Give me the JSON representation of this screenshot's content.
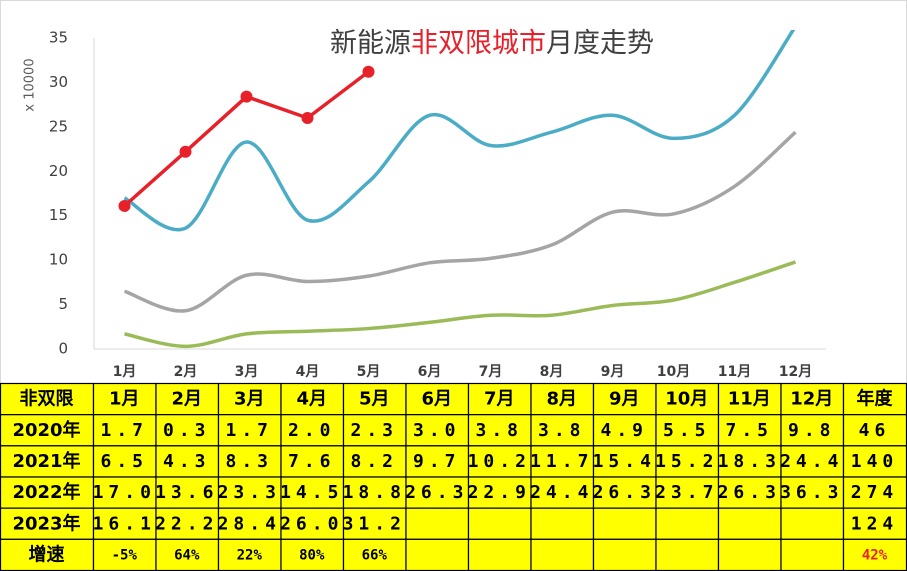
{
  "chart_data": {
    "type": "line",
    "title": [
      "新能源",
      "非双限城市",
      "月度走势"
    ],
    "title_colors": [
      "#404040",
      "#e8202a",
      "#404040"
    ],
    "y_label": "x 10000",
    "categories": [
      "1月",
      "2月",
      "3月",
      "4月",
      "5月",
      "6月",
      "7月",
      "8月",
      "9月",
      "10月",
      "11月",
      "12月"
    ],
    "ylim": [
      0,
      35
    ],
    "yticks": [
      0,
      5,
      10,
      15,
      20,
      25,
      30,
      35
    ],
    "series": [
      {
        "name": "2020年",
        "color": "#9bbb59",
        "values": [
          1.7,
          0.3,
          1.7,
          2.0,
          2.3,
          3.0,
          3.8,
          3.8,
          4.9,
          5.5,
          7.5,
          9.8
        ]
      },
      {
        "name": "2021年",
        "color": "#a5a5a5",
        "values": [
          6.5,
          4.3,
          8.3,
          7.6,
          8.2,
          9.7,
          10.2,
          11.7,
          15.4,
          15.2,
          18.3,
          24.4
        ]
      },
      {
        "name": "2022年",
        "color": "#4bacc6",
        "values": [
          17.0,
          13.6,
          23.3,
          14.5,
          18.8,
          26.3,
          22.9,
          24.4,
          26.3,
          23.7,
          26.3,
          36.3
        ]
      },
      {
        "name": "2023年",
        "color": "#e8202a",
        "markers": true,
        "values": [
          16.1,
          22.2,
          28.4,
          26.0,
          31.2,
          null,
          null,
          null,
          null,
          null,
          null,
          null
        ]
      }
    ]
  },
  "table": {
    "header": [
      "非双限",
      "1月",
      "2月",
      "3月",
      "4月",
      "5月",
      "6月",
      "7月",
      "8月",
      "9月",
      "10月",
      "11月",
      "12月",
      "年度"
    ],
    "rows": [
      [
        "2020年",
        "1.7",
        "0.3",
        "1.7",
        "2.0",
        "2.3",
        "3.0",
        "3.8",
        "3.8",
        "4.9",
        "5.5",
        "7.5",
        "9.8",
        "46"
      ],
      [
        "2021年",
        "6.5",
        "4.3",
        "8.3",
        "7.6",
        "8.2",
        "9.7",
        "10.2",
        "11.7",
        "15.4",
        "15.2",
        "18.3",
        "24.4",
        "140"
      ],
      [
        "2022年",
        "17.0",
        "13.6",
        "23.3",
        "14.5",
        "18.8",
        "26.3",
        "22.9",
        "24.4",
        "26.3",
        "23.7",
        "26.3",
        "36.3",
        "274"
      ],
      [
        "2023年",
        "16.1",
        "22.2",
        "28.4",
        "26.0",
        "31.2",
        null,
        null,
        null,
        null,
        null,
        null,
        null,
        "124"
      ],
      [
        "增速",
        "-5%",
        "64%",
        "22%",
        "80%",
        "66%",
        null,
        null,
        null,
        null,
        null,
        null,
        null,
        "42%"
      ]
    ]
  }
}
